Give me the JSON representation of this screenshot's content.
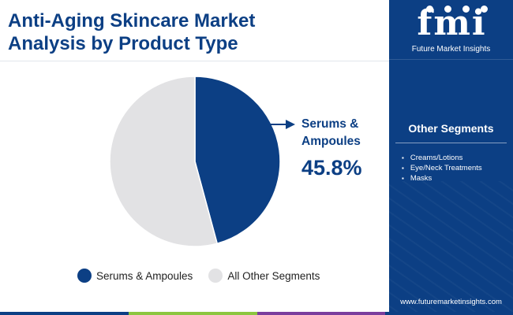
{
  "title": {
    "line1": "Anti-Aging Skincare Market",
    "line2": "Analysis by Product Type"
  },
  "chart_data": {
    "type": "pie",
    "title": "Anti-Aging Skincare Market Analysis by Product Type",
    "categories": [
      "Serums & Ampoules",
      "All Other Segments"
    ],
    "values": [
      45.8,
      54.2
    ],
    "unit": "%",
    "colors": [
      "#0c3f84",
      "#e2e2e4"
    ],
    "legend_placement": "bottom"
  },
  "callout": {
    "label_line1": "Serums &",
    "label_line2": "Ampoules",
    "value": "45.8%"
  },
  "legend": {
    "items": [
      {
        "label": "Serums & Ampoules",
        "color": "#0c3f84"
      },
      {
        "label": "All Other Segments",
        "color": "#e2e2e4"
      }
    ]
  },
  "panel": {
    "logo_letters": "fmi",
    "logo_text": "Future Market Insights",
    "segments_heading": "Other Segments",
    "segments": [
      "Creams/Lotions",
      "Eye/Neck Treatments",
      "Masks"
    ],
    "website": "www.futuremarketinsights.com"
  },
  "bottom_bar_colors": [
    "#0c3f84",
    "#8cc63f",
    "#7a3e9d",
    "#0c3f84"
  ]
}
